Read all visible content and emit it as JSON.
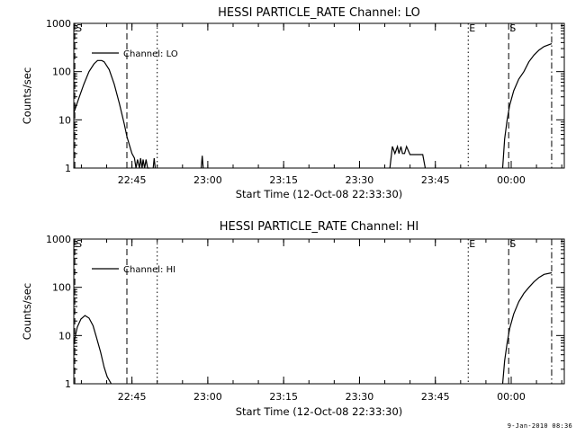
{
  "chart_data": [
    {
      "type": "line",
      "title": "HESSI PARTICLE_RATE Channel: LO",
      "xlabel": "Start Time (12-Oct-08 22:33:30)",
      "ylabel": "Counts/sec",
      "yscale": "log",
      "ylim": [
        1,
        1000
      ],
      "xlim_minutes": [
        0,
        97
      ],
      "x_unit": "minutes after 22:33:30",
      "x_ticks": [
        {
          "minutes": 11.5,
          "label": "22:45"
        },
        {
          "minutes": 26.5,
          "label": "23:00"
        },
        {
          "minutes": 41.5,
          "label": "23:15"
        },
        {
          "minutes": 56.5,
          "label": "23:30"
        },
        {
          "minutes": 71.5,
          "label": "23:45"
        },
        {
          "minutes": 86.5,
          "label": "00:00"
        }
      ],
      "y_ticks": [
        {
          "value": 1,
          "label": "1"
        },
        {
          "value": 10,
          "label": "10"
        },
        {
          "value": 100,
          "label": "100"
        },
        {
          "value": 1000,
          "label": "1000"
        }
      ],
      "legend": {
        "label": "Channel: LO",
        "placement": "top-left"
      },
      "markers": [
        {
          "minutes": 0.2,
          "label": "S",
          "style": "dash"
        },
        {
          "minutes": 10.5,
          "label": "",
          "style": "dash"
        },
        {
          "minutes": 16.5,
          "label": "",
          "style": "dot"
        },
        {
          "minutes": 78.0,
          "label": "E",
          "style": "dot"
        },
        {
          "minutes": 86.0,
          "label": "S",
          "style": "dash"
        },
        {
          "minutes": 94.5,
          "label": "",
          "style": "dashdot"
        }
      ],
      "series": [
        {
          "name": "Channel: LO",
          "segments": [
            {
              "x": [
                0,
                1,
                2,
                3,
                4,
                4.7,
                5.5,
                6,
                7,
                8,
                9,
                10,
                10.5,
                11,
                11.5,
                12,
                12.3,
                12.6,
                13,
                13.2,
                13.5,
                13.7,
                14,
                14.3,
                14.6,
                15
              ],
              "y": [
                14,
                28,
                55,
                100,
                145,
                170,
                170,
                160,
                110,
                55,
                22,
                8,
                4.5,
                3,
                2,
                1.6,
                1,
                1.5,
                1,
                1.6,
                1,
                1.5,
                1,
                1.5,
                1,
                1
              ]
            },
            {
              "x": [
                15.7,
                15.9,
                16.1
              ],
              "y": [
                1,
                1.6,
                1
              ]
            },
            {
              "x": [
                25.2,
                25.4,
                25.6
              ],
              "y": [
                1,
                1.8,
                1
              ]
            },
            {
              "x": [
                62.5,
                63,
                63.5,
                64,
                64.3,
                64.7,
                65,
                65.4,
                65.8,
                66.5,
                67,
                69,
                69.5
              ],
              "y": [
                1,
                2.8,
                2,
                2.8,
                2,
                2.8,
                2,
                2,
                2.8,
                1.9,
                1.9,
                1.9,
                1
              ]
            },
            {
              "x": [
                84.8,
                85.2,
                85.7,
                86.2,
                87,
                88,
                89,
                90,
                91,
                92,
                93,
                94.5
              ],
              "y": [
                1,
                4,
                10,
                20,
                40,
                70,
                100,
                160,
                220,
                280,
                330,
                380
              ]
            }
          ]
        }
      ]
    },
    {
      "type": "line",
      "title": "HESSI PARTICLE_RATE Channel: HI",
      "xlabel": "Start Time (12-Oct-08 22:33:30)",
      "ylabel": "Counts/sec",
      "yscale": "log",
      "ylim": [
        1,
        1000
      ],
      "xlim_minutes": [
        0,
        97
      ],
      "x_unit": "minutes after 22:33:30",
      "x_ticks": [
        {
          "minutes": 11.5,
          "label": "22:45"
        },
        {
          "minutes": 26.5,
          "label": "23:00"
        },
        {
          "minutes": 41.5,
          "label": "23:15"
        },
        {
          "minutes": 56.5,
          "label": "23:30"
        },
        {
          "minutes": 71.5,
          "label": "23:45"
        },
        {
          "minutes": 86.5,
          "label": "00:00"
        }
      ],
      "y_ticks": [
        {
          "value": 1,
          "label": "1"
        },
        {
          "value": 10,
          "label": "10"
        },
        {
          "value": 100,
          "label": "100"
        },
        {
          "value": 1000,
          "label": "1000"
        }
      ],
      "legend": {
        "label": "Channel: HI",
        "placement": "top-left"
      },
      "markers": [
        {
          "minutes": 0.2,
          "label": "S",
          "style": "dash"
        },
        {
          "minutes": 10.5,
          "label": "",
          "style": "dash"
        },
        {
          "minutes": 16.5,
          "label": "",
          "style": "dot"
        },
        {
          "minutes": 78.0,
          "label": "E",
          "style": "dot"
        },
        {
          "minutes": 86.0,
          "label": "S",
          "style": "dash"
        },
        {
          "minutes": 94.5,
          "label": "",
          "style": "dashdot"
        }
      ],
      "series": [
        {
          "name": "Channel: HI",
          "segments": [
            {
              "x": [
                0,
                0.7,
                1.4,
                2.2,
                3,
                3.8,
                4.5,
                5.3,
                6,
                6.6,
                7.4
              ],
              "y": [
                7,
                15,
                22,
                26,
                23,
                16,
                9,
                4.5,
                2.2,
                1.4,
                1
              ]
            },
            {
              "x": [
                84.8,
                85.2,
                85.7,
                86.2,
                87,
                88,
                89,
                90,
                91,
                92,
                93,
                94.5
              ],
              "y": [
                1,
                3,
                7,
                14,
                28,
                50,
                75,
                100,
                130,
                160,
                185,
                200
              ]
            }
          ]
        }
      ]
    }
  ],
  "timestamp": "9-Jan-2010 08:36"
}
